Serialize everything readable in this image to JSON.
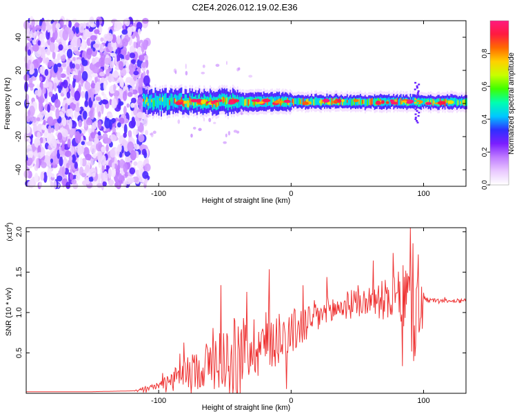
{
  "figure": {
    "title": "C2E4.2026.012.19.02.E36"
  },
  "chart_data": [
    {
      "type": "heatmap",
      "title": "",
      "xlabel": "Height of straight line (km)",
      "ylabel": "Frequency (Hz)",
      "xlim": [
        -200,
        132
      ],
      "ylim": [
        -50,
        50
      ],
      "xticks": [
        {
          "v": -100,
          "label": "-100"
        },
        {
          "v": 0,
          "label": "0"
        },
        {
          "v": 100,
          "label": "100"
        }
      ],
      "yticks": [
        {
          "v": 40,
          "label": "40"
        },
        {
          "v": 20,
          "label": "20"
        },
        {
          "v": 0,
          "label": "0"
        },
        {
          "v": -20,
          "label": "-20"
        },
        {
          "v": -40,
          "label": "-40"
        }
      ],
      "regions": [
        {
          "name": "noise",
          "x_range": [
            -200,
            -108
          ],
          "y_range": [
            -50,
            50
          ],
          "amplitude": 0.15
        },
        {
          "name": "signal-band",
          "x_range": [
            -112,
            132
          ],
          "center_freq": 1,
          "half_width_hz": 4,
          "amplitude": 0.45
        },
        {
          "name": "spike",
          "x_center": 95,
          "y_range": [
            -12,
            12
          ],
          "amplitude": 0.3
        }
      ],
      "colorbar": {
        "label": "Normalized spectral amplitude",
        "range": [
          0,
          1
        ],
        "ticks": [
          {
            "v": 0.0,
            "label": "0.0"
          },
          {
            "v": 0.2,
            "label": "0.2"
          },
          {
            "v": 0.4,
            "label": "0.4"
          },
          {
            "v": 0.6,
            "label": "0.6"
          },
          {
            "v": 0.8,
            "label": "0.8"
          }
        ],
        "colors": [
          "#ffffff",
          "#e9c8ff",
          "#c07cff",
          "#7b1fff",
          "#2f2fff",
          "#00c8ff",
          "#00ffb0",
          "#3fff00",
          "#c8ff00",
          "#ffd000",
          "#ff6a00",
          "#ff1a40",
          "#ff1a80"
        ]
      }
    },
    {
      "type": "line",
      "title": "",
      "xlabel": "Height of straight line (km)",
      "ylabel": "SNR (10 * v/v)",
      "y_multiplier": "(x10",
      "y_multiplier_exp": "4",
      "y_multiplier_close": ")",
      "xlim": [
        -200,
        132
      ],
      "ylim": [
        0,
        2.05
      ],
      "xticks": [
        {
          "v": -100,
          "label": "-100"
        },
        {
          "v": 0,
          "label": "0"
        },
        {
          "v": 100,
          "label": "100"
        }
      ],
      "yticks": [
        {
          "v": 2.0,
          "label": "2.0"
        },
        {
          "v": 1.5,
          "label": "1.5"
        },
        {
          "v": 1.0,
          "label": "1.0"
        },
        {
          "v": 0.5,
          "label": "0.5"
        }
      ],
      "color": "#ee3333",
      "series": [
        {
          "name": "SNR",
          "x": [
            -200,
            -150,
            -120,
            -110,
            -100,
            -90,
            -80,
            -70,
            -60,
            -50,
            -40,
            -30,
            -20,
            -10,
            0,
            10,
            20,
            30,
            40,
            50,
            60,
            70,
            80,
            88,
            93,
            96,
            98,
            100,
            110,
            120,
            132
          ],
          "y": [
            0.02,
            0.02,
            0.03,
            0.05,
            0.1,
            0.18,
            0.25,
            0.3,
            0.38,
            0.45,
            0.52,
            0.58,
            0.62,
            0.7,
            0.75,
            0.85,
            0.95,
            1.02,
            1.08,
            1.12,
            1.14,
            1.16,
            1.18,
            1.2,
            1.1,
            1.0,
            1.1,
            1.15,
            1.15,
            1.14,
            1.16
          ],
          "noise_amplitude": [
            0.0,
            0.0,
            0.0,
            0.02,
            0.05,
            0.1,
            0.18,
            0.25,
            0.35,
            0.4,
            0.45,
            0.4,
            0.42,
            0.35,
            0.3,
            0.25,
            0.22,
            0.2,
            0.18,
            0.18,
            0.2,
            0.25,
            0.3,
            0.5,
            0.8,
            0.9,
            0.7,
            0.05,
            0.02,
            0.02,
            0.02
          ]
        }
      ]
    }
  ]
}
